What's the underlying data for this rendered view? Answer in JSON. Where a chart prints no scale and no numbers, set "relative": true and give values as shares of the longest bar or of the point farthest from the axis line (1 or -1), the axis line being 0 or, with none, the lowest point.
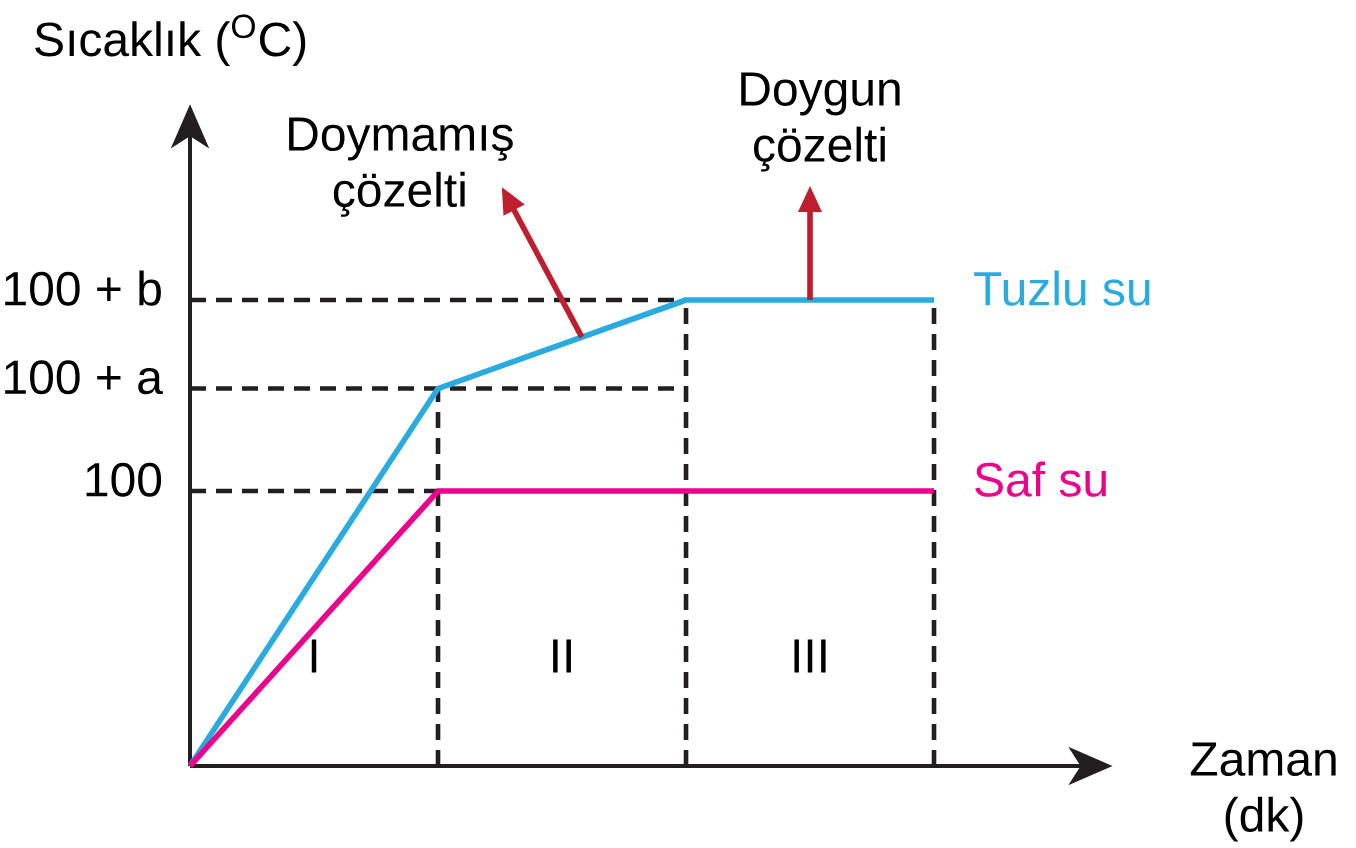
{
  "chart_data": {
    "type": "line",
    "relative": true,
    "xlabel": "Zaman (dk)",
    "ylabel": "Sıcaklık ($^{O}$C)",
    "categories": [
      null,
      null,
      null,
      null
    ],
    "series": [
      {
        "name": "Tuzlu su",
        "color": "#29abe2",
        "values": [
          0,
          0.81,
          1,
          1
        ]
      },
      {
        "name": "Saf su",
        "color": "#ec008c",
        "values": [
          0,
          0.59,
          0.59,
          0.59
        ]
      }
    ],
    "ref_lines": [
      {
        "axis": "y",
        "value": 1,
        "color": "#231f20",
        "line_style": "dashed"
      },
      {
        "axis": "y",
        "value": 0.81,
        "color": "#231f20",
        "line_style": "dashed"
      },
      {
        "axis": "y",
        "value": 0.59,
        "color": "#231f20",
        "line_style": "dashed"
      }
    ],
    "annotations": [
      "Doymamış çözelti",
      {
        "text": "Doygun çözelti",
        "y": 1
      },
      "I",
      "II",
      "III",
      "100 + b",
      "100 + a",
      "100"
    ],
    "grid": "x",
    "legend": false,
    "marker": "none"
  }
}
